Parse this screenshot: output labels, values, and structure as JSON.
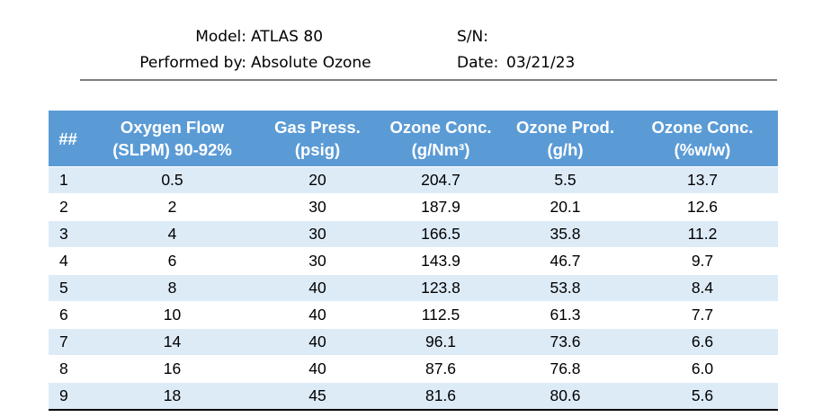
{
  "header": {
    "model_label": "Model:",
    "model_value": "ATLAS 80",
    "performed_label": "Performed by:",
    "performed_value": "Absolute Ozone",
    "sn_label": "S/N:",
    "sn_value": "",
    "date_label": "Date:",
    "date_value": "03/21/23"
  },
  "table": {
    "columns": [
      {
        "line1": "##",
        "line2": ""
      },
      {
        "line1": "Oxygen Flow",
        "line2": "(SLPM) 90-92%"
      },
      {
        "line1": "Gas Press.",
        "line2": "(psig)"
      },
      {
        "line1": "Ozone Conc.",
        "line2": "(g/Nm³)"
      },
      {
        "line1": "Ozone Prod.",
        "line2": "(g/h)"
      },
      {
        "line1": "Ozone Conc.",
        "line2": "(%w/w)"
      }
    ],
    "rows": [
      [
        "1",
        "0.5",
        "20",
        "204.7",
        "5.5",
        "13.7"
      ],
      [
        "2",
        "2",
        "30",
        "187.9",
        "20.1",
        "12.6"
      ],
      [
        "3",
        "4",
        "30",
        "166.5",
        "35.8",
        "11.2"
      ],
      [
        "4",
        "6",
        "30",
        "143.9",
        "46.7",
        "9.7"
      ],
      [
        "5",
        "8",
        "40",
        "123.8",
        "53.8",
        "8.4"
      ],
      [
        "6",
        "10",
        "40",
        "112.5",
        "61.3",
        "7.7"
      ],
      [
        "7",
        "14",
        "40",
        "96.1",
        "73.6",
        "6.6"
      ],
      [
        "8",
        "16",
        "40",
        "87.6",
        "76.8",
        "6.0"
      ],
      [
        "9",
        "18",
        "45",
        "81.6",
        "80.6",
        "5.6"
      ]
    ]
  }
}
